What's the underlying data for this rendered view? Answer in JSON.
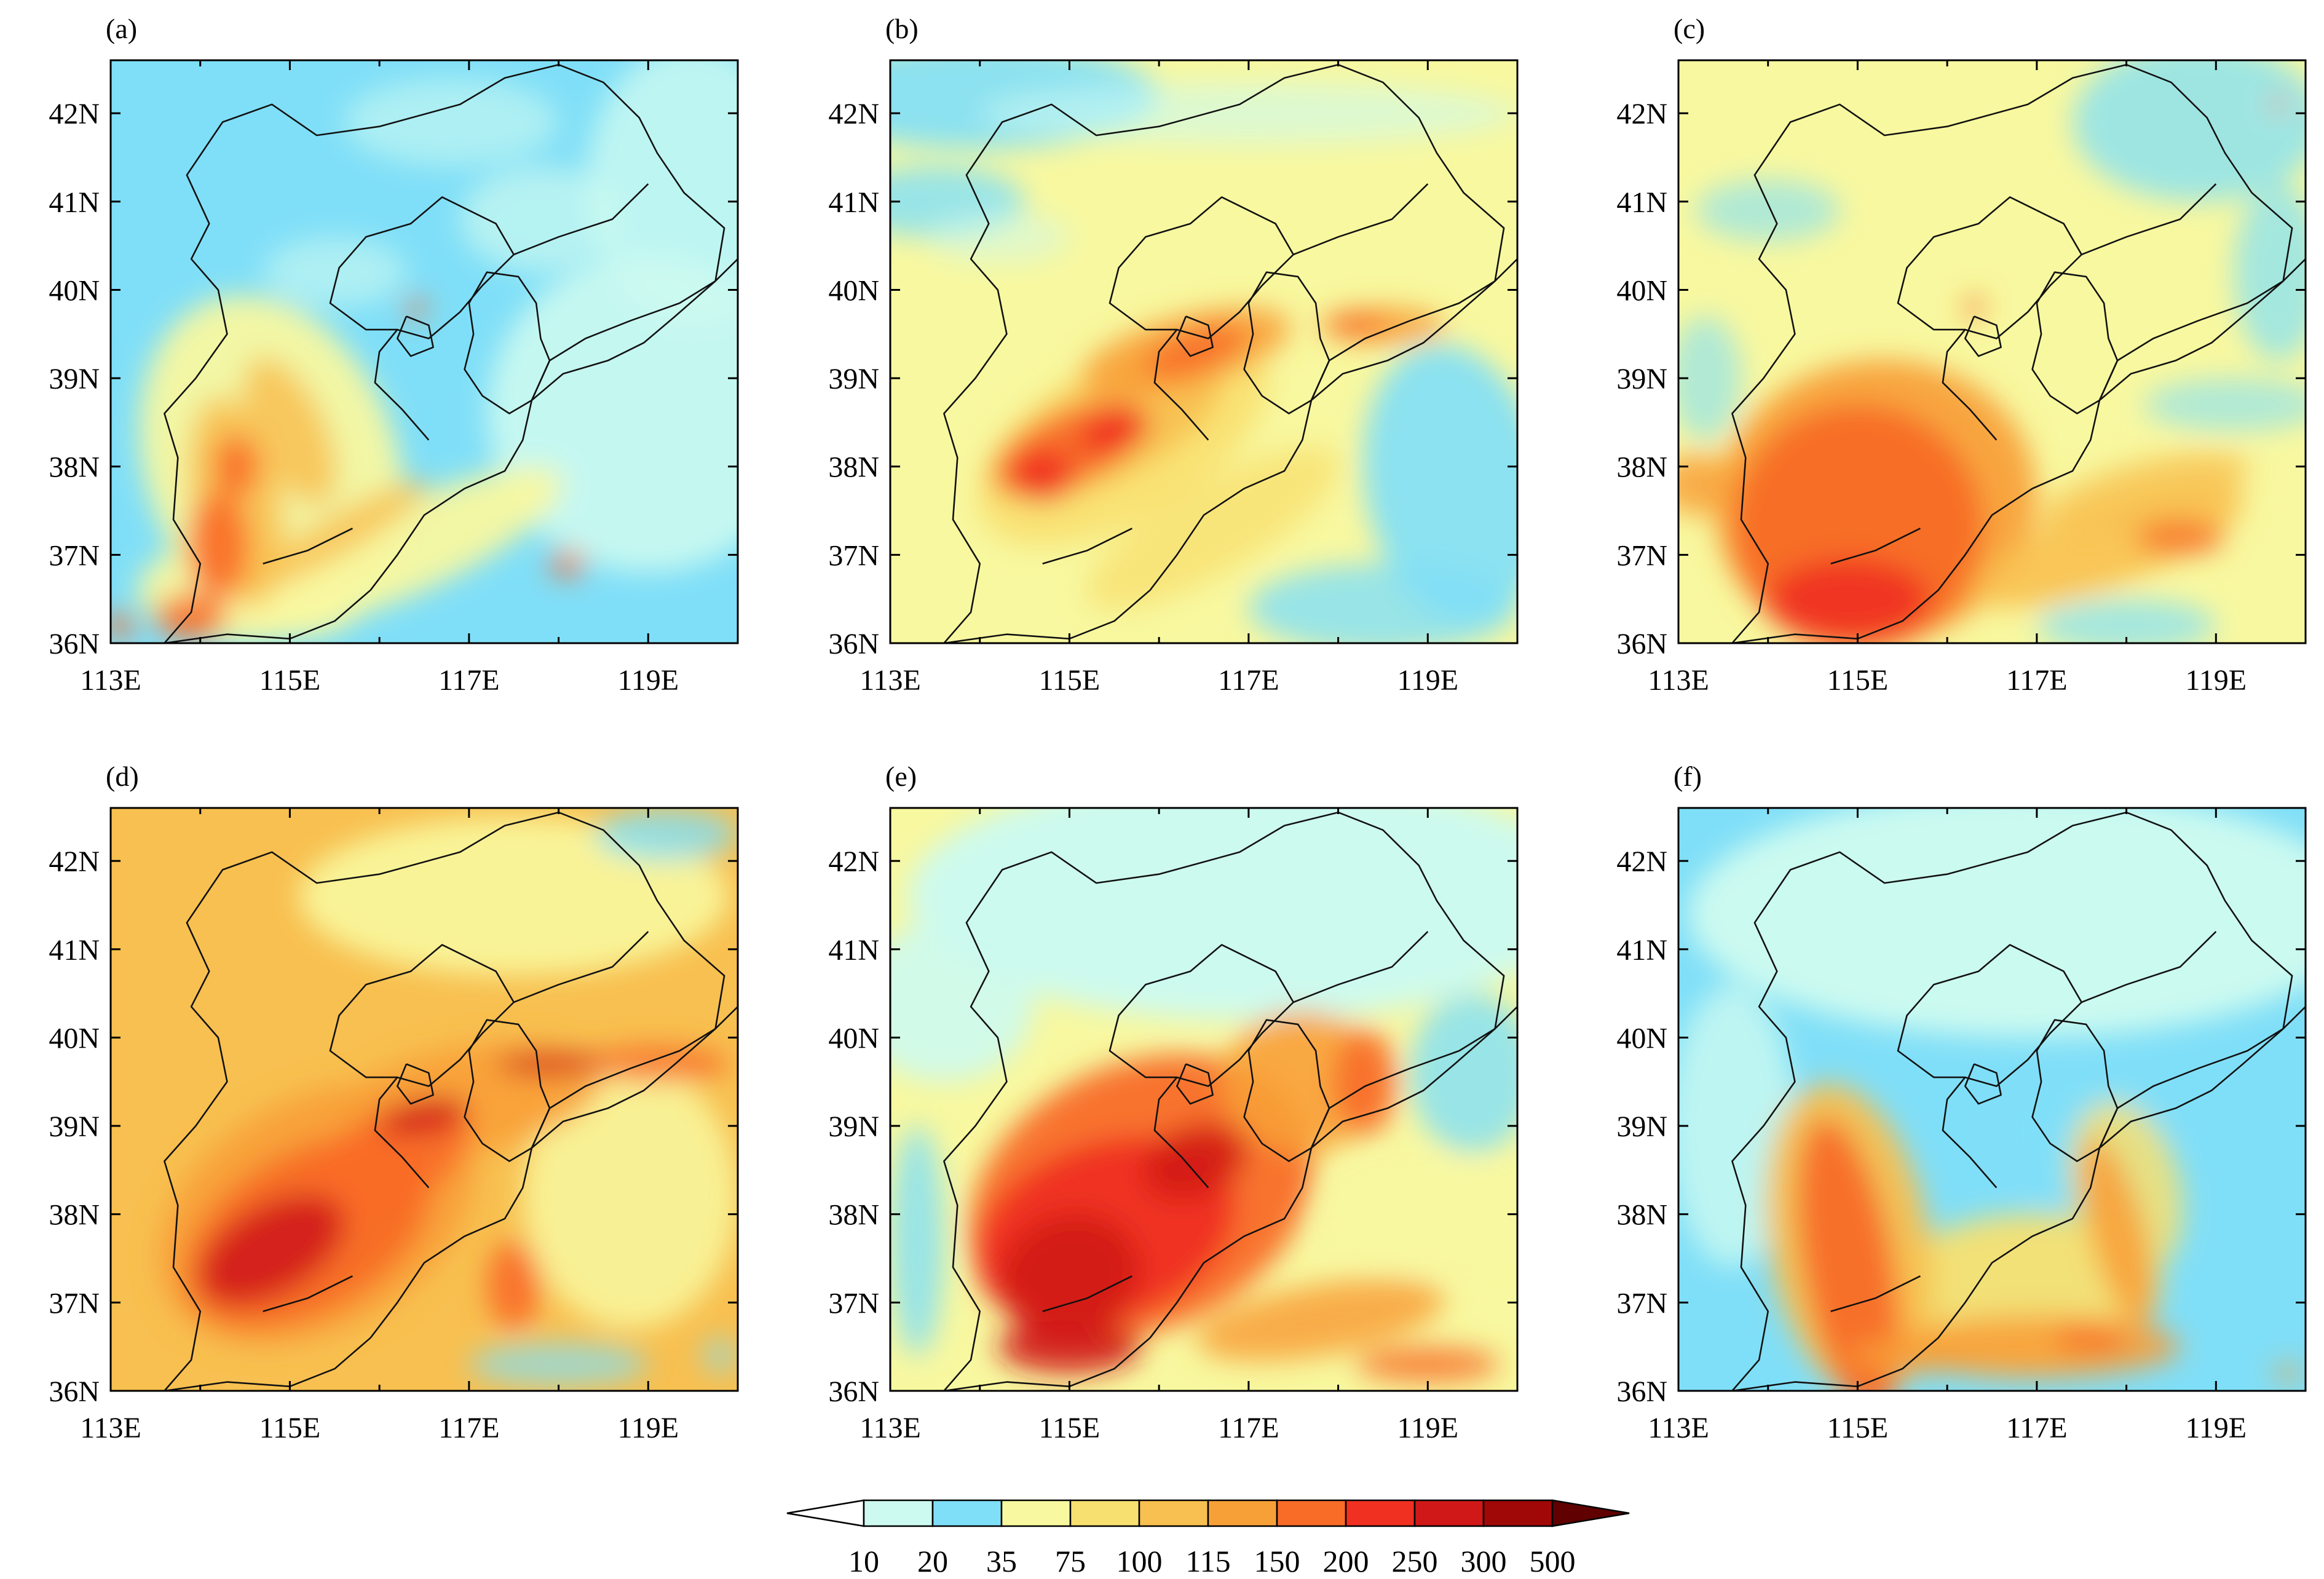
{
  "figure": {
    "panels": [
      {
        "label": "(a)",
        "profile": "a"
      },
      {
        "label": "(b)",
        "profile": "b"
      },
      {
        "label": "(c)",
        "profile": "c"
      },
      {
        "label": "(d)",
        "profile": "d"
      },
      {
        "label": "(e)",
        "profile": "e"
      },
      {
        "label": "(f)",
        "profile": "f"
      }
    ],
    "lon_ticks": [
      "113E",
      "115E",
      "117E",
      "119E"
    ],
    "lat_ticks": [
      "36N",
      "37N",
      "38N",
      "39N",
      "40N",
      "41N",
      "42N"
    ],
    "lon_range": [
      113,
      120
    ],
    "lat_range": [
      36,
      42.6
    ],
    "colorbar": {
      "labels": [
        "10",
        "20",
        "35",
        "75",
        "100",
        "115",
        "150",
        "200",
        "250",
        "300",
        "500"
      ],
      "colors": [
        "#ffffff",
        "#ccfaf0",
        "#80dff8",
        "#f8f8a0",
        "#f8e070",
        "#f8c050",
        "#f8a038",
        "#f86c28",
        "#f03020",
        "#d01818",
        "#a00808",
        "#600000"
      ]
    }
  }
}
